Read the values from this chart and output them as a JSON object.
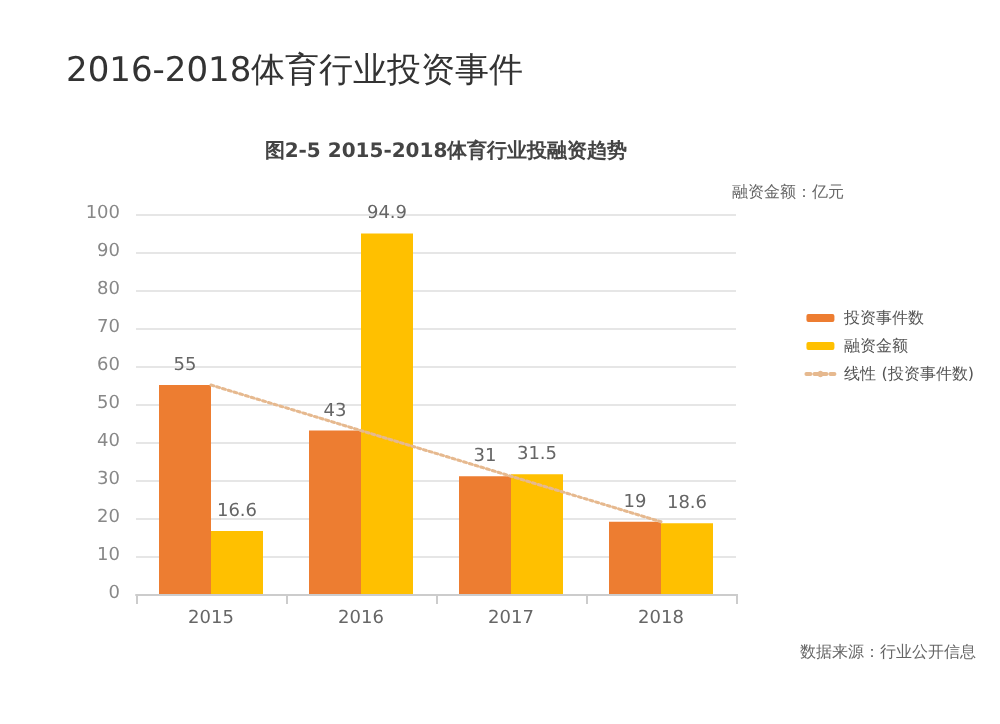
{
  "chart_data": {
    "type": "bar",
    "title": "2016-2018体育行业投资事件",
    "subtitle": "图2-5 2015-2018体育行业投融资趋势",
    "categories": [
      "2015",
      "2016",
      "2017",
      "2018"
    ],
    "series": [
      {
        "name": "投资事件数",
        "color": "#ed7d31",
        "values": [
          55,
          43,
          31,
          19
        ],
        "value_labels": [
          "55",
          "43",
          "31",
          "19"
        ]
      },
      {
        "name": "融资金额",
        "color": "#ffc000",
        "values": [
          16.6,
          94.9,
          31.5,
          18.6
        ],
        "value_labels": [
          "16.6",
          "94.9",
          "31.5",
          "18.6"
        ]
      },
      {
        "name": "线性 (投资事件数)",
        "type": "line",
        "color": "#e6b98f",
        "line_style": "dotted",
        "marker": "none",
        "values": [
          55,
          43,
          31,
          19
        ]
      }
    ],
    "ylim": [
      0,
      100
    ],
    "yticks": [
      0,
      10,
      20,
      30,
      40,
      50,
      60,
      70,
      80,
      90,
      100
    ],
    "grid": "y",
    "legend": "right",
    "annotations": [
      "融资金额：亿元",
      "数据来源：行业公开信息"
    ]
  }
}
